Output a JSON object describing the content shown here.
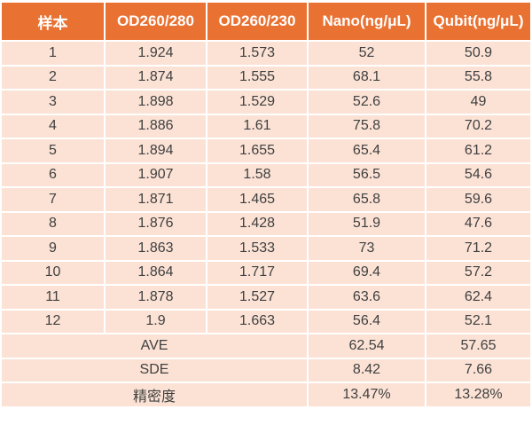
{
  "chart_data": {
    "type": "table",
    "title": "",
    "columns": [
      "样本",
      "OD260/280",
      "OD260/230",
      "Nano(ng/μL)",
      "Qubit(ng/μL)"
    ],
    "rows": [
      [
        "1",
        "1.924",
        "1.573",
        "52",
        "50.9"
      ],
      [
        "2",
        "1.874",
        "1.555",
        "68.1",
        "55.8"
      ],
      [
        "3",
        "1.898",
        "1.529",
        "52.6",
        "49"
      ],
      [
        "4",
        "1.886",
        "1.61",
        "75.8",
        "70.2"
      ],
      [
        "5",
        "1.894",
        "1.655",
        "65.4",
        "61.2"
      ],
      [
        "6",
        "1.907",
        "1.58",
        "56.5",
        "54.6"
      ],
      [
        "7",
        "1.871",
        "1.465",
        "65.8",
        "59.6"
      ],
      [
        "8",
        "1.876",
        "1.428",
        "51.9",
        "47.6"
      ],
      [
        "9",
        "1.863",
        "1.533",
        "73",
        "71.2"
      ],
      [
        "10",
        "1.864",
        "1.717",
        "69.4",
        "57.2"
      ],
      [
        "11",
        "1.878",
        "1.527",
        "63.6",
        "62.4"
      ],
      [
        "12",
        "1.9",
        "1.663",
        "56.4",
        "52.1"
      ]
    ],
    "summary_rows": [
      {
        "label": "AVE",
        "nano": "62.54",
        "qubit": "57.65"
      },
      {
        "label": "SDE",
        "nano": "8.42",
        "qubit": "7.66"
      },
      {
        "label": "精密度",
        "nano": "13.47%",
        "qubit": "13.28%"
      }
    ]
  },
  "colors": {
    "header_bg": "#E97132",
    "header_text": "#FFFFFF",
    "row_bg": "#FBE2D5",
    "body_text": "#404040",
    "gridline": "#FFFFFF"
  }
}
